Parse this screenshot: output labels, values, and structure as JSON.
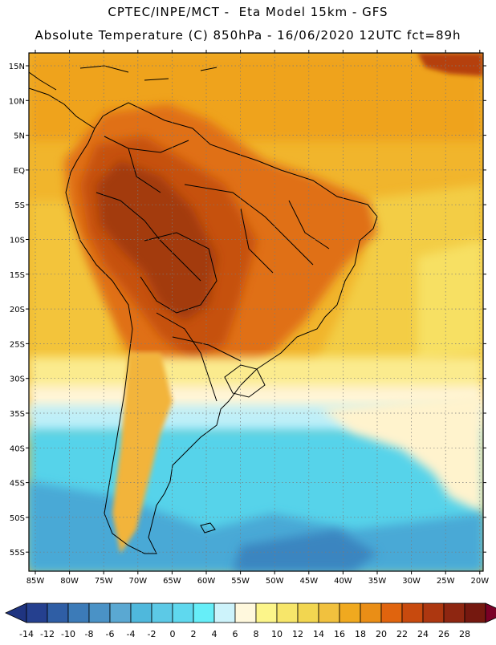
{
  "header": {
    "title_line1": "CPTEC/INPE/MCT -  Eta Model 15km - GFS",
    "title_line2": "Absolute Temperature (C) 850hPa - 16/06/2020 12UTC fct=89h"
  },
  "map": {
    "lat_labels": [
      "15N",
      "10N",
      "5N",
      "EQ",
      "5S",
      "10S",
      "15S",
      "20S",
      "25S",
      "30S",
      "35S",
      "40S",
      "45S",
      "50S",
      "55S"
    ],
    "lon_labels": [
      "85W",
      "80W",
      "75W",
      "70W",
      "65W",
      "60W",
      "55W",
      "50W",
      "45W",
      "40W",
      "35W",
      "30W",
      "25W",
      "20W"
    ],
    "gridline_style": "dotted"
  },
  "colorbar": {
    "tick_labels": [
      "-14",
      "-12",
      "-10",
      "-8",
      "-6",
      "-4",
      "-2",
      "0",
      "2",
      "4",
      "6",
      "8",
      "10",
      "12",
      "14",
      "16",
      "18",
      "20",
      "22",
      "24",
      "26",
      "28"
    ],
    "colors": [
      "#25408f",
      "#2f5ea5",
      "#3c7bb8",
      "#4a92c6",
      "#5aa8d2",
      "#4fb8dc",
      "#5cc9e6",
      "#5fd8ee",
      "#66eef8",
      "#cdf3fb",
      "#fff8dd",
      "#fcf58a",
      "#f7e66a",
      "#f2d650",
      "#f1c13e",
      "#f0a91f",
      "#ea8e16",
      "#e0640e",
      "#c84a0e",
      "#ad3710",
      "#8e2611",
      "#75180f"
    ],
    "under_color": "#1f3480",
    "over_color": "#7a0026"
  }
}
